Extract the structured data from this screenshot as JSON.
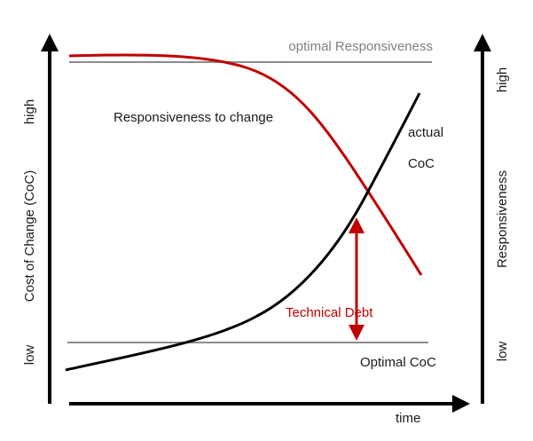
{
  "labels": {
    "optimal_responsiveness": "optimal Responsiveness",
    "responsiveness_to_change": "Responsiveness to change",
    "actual_line1": "actual",
    "actual_line2": "CoC",
    "technical_debt": "Technical Debt",
    "optimal_coc": "Optimal CoC",
    "time": "time",
    "left_axis_label": "Cost of Change (CoC)",
    "left_axis_high": "high",
    "left_axis_low": "low",
    "right_axis_label": "Responsiveness",
    "right_axis_high": "high",
    "right_axis_low": "low"
  },
  "colors": {
    "axis": "#000000",
    "reference_line": "#8c8c8c",
    "responsiveness_curve": "#c00000",
    "coc_curve": "#000000",
    "technical_debt": "#c00000",
    "text": "#1a1a1a",
    "muted_text": "#7f7f7f"
  }
}
